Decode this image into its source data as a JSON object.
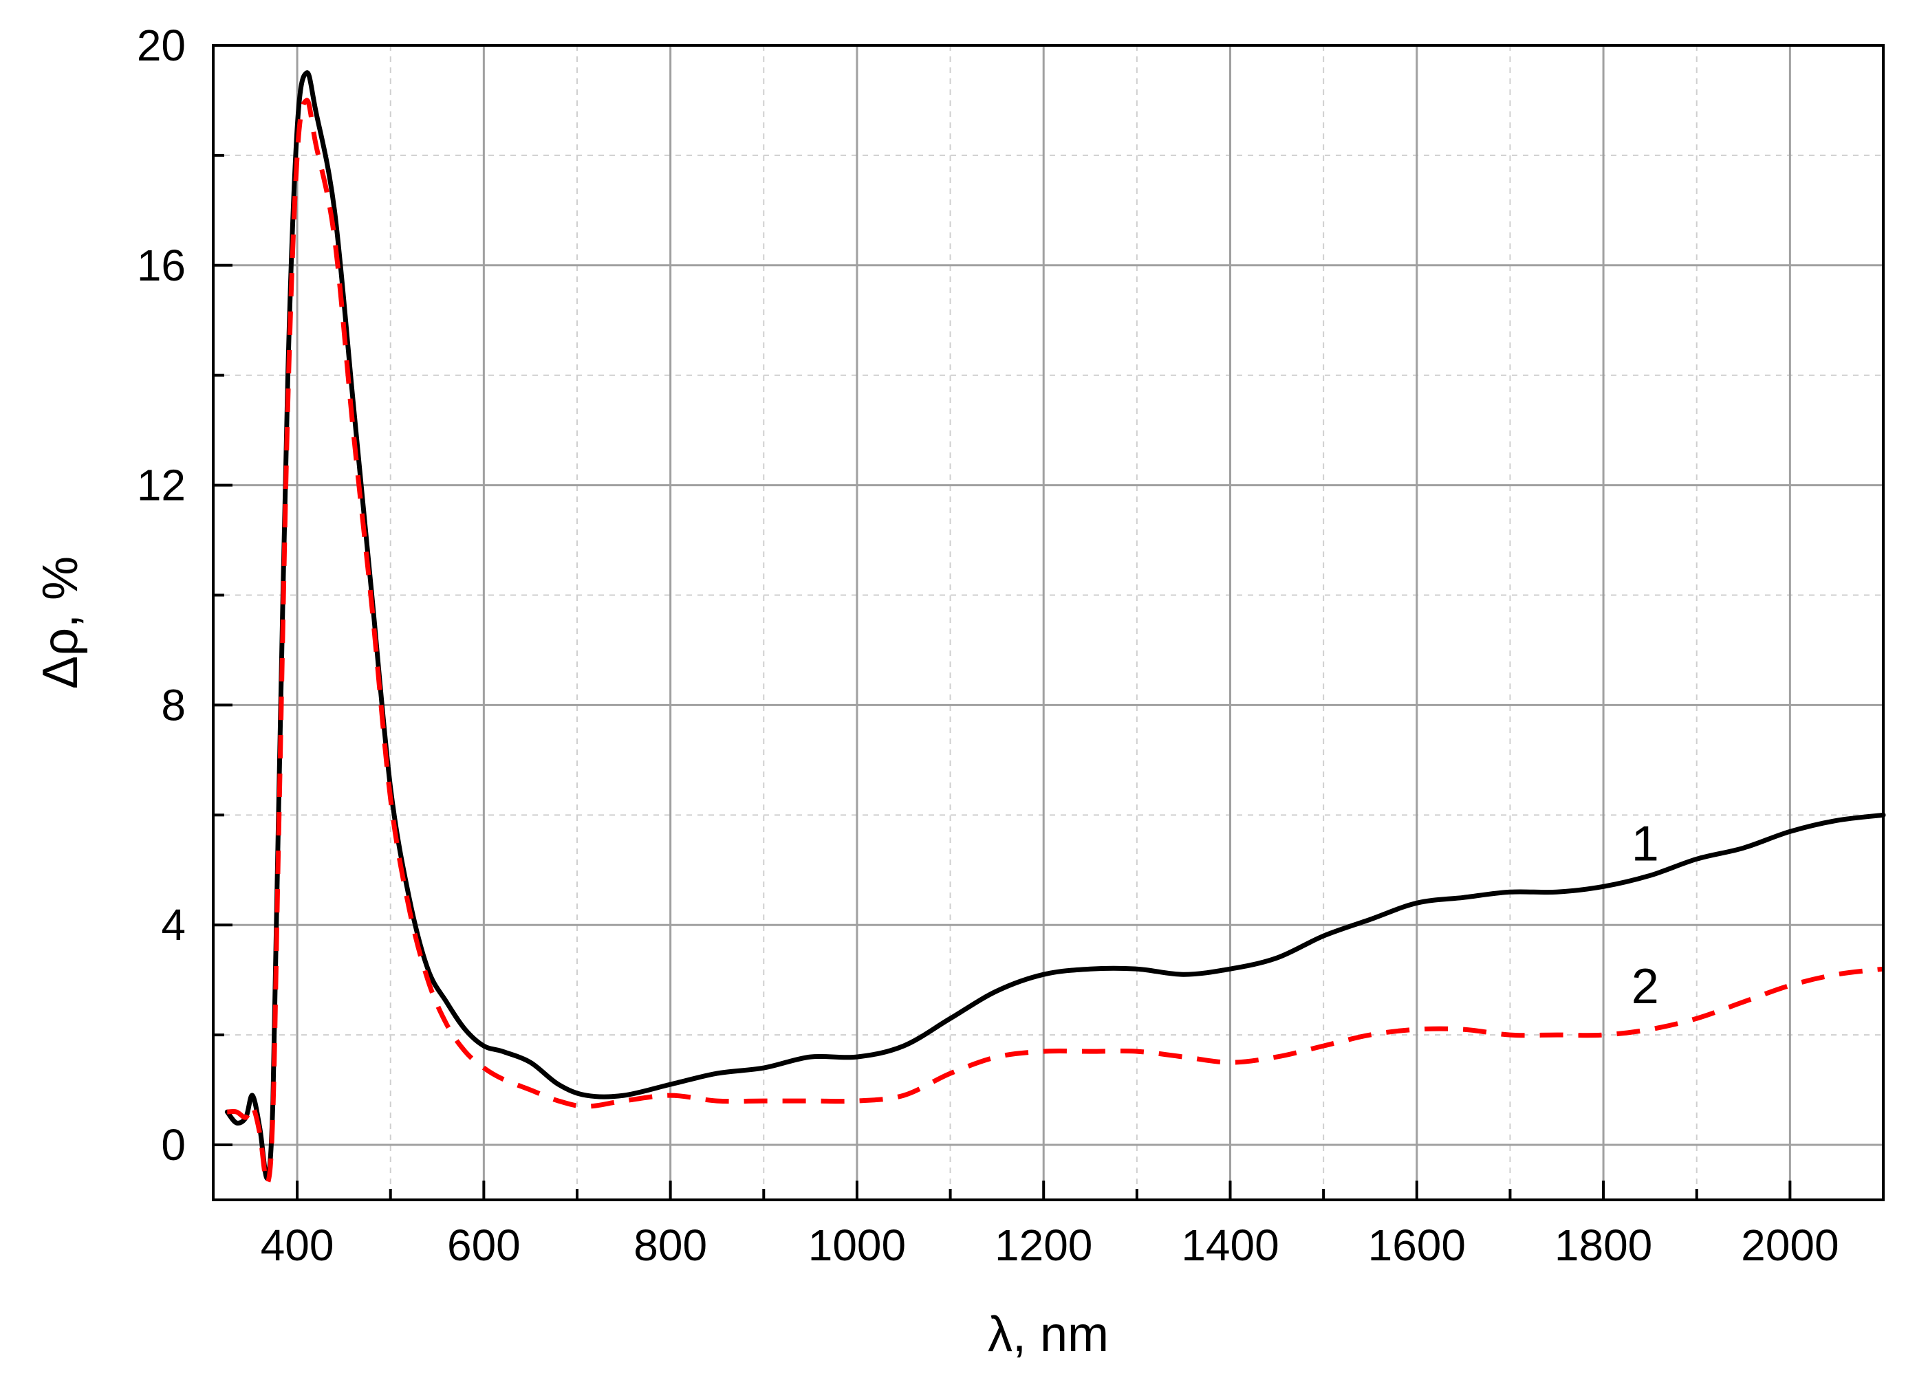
{
  "chart_data": {
    "type": "line",
    "title": "",
    "xlabel": "λ, nm",
    "ylabel": "Δρ, %",
    "xlim": [
      310,
      2100
    ],
    "ylim": [
      -1,
      20
    ],
    "x_ticks": [
      400,
      600,
      800,
      1000,
      1200,
      1400,
      1600,
      1800,
      2000
    ],
    "y_ticks": [
      0,
      4,
      8,
      12,
      16,
      20
    ],
    "x_tick_labels": [
      "400",
      "600",
      "800",
      "1000",
      "1200",
      "1400",
      "1600",
      "1800",
      "2000"
    ],
    "y_tick_labels": [
      "0",
      "4",
      "8",
      "12",
      "16",
      "20"
    ],
    "x_minor_step": 100,
    "y_minor_step": 2,
    "grid": true,
    "legend": "none",
    "series": [
      {
        "label": "1",
        "color": "#000000",
        "dash": "solid",
        "x": [
          325,
          335,
          345,
          352,
          360,
          368,
          374,
          380,
          390,
          400,
          410,
          420,
          440,
          460,
          480,
          500,
          520,
          540,
          560,
          580,
          600,
          620,
          650,
          680,
          710,
          750,
          800,
          850,
          900,
          950,
          1000,
          1050,
          1100,
          1150,
          1200,
          1250,
          1300,
          1350,
          1400,
          1450,
          1500,
          1550,
          1600,
          1650,
          1700,
          1750,
          1800,
          1850,
          1900,
          1950,
          2000,
          2050,
          2100
        ],
        "y": [
          0.6,
          0.4,
          0.5,
          0.9,
          0.3,
          -0.6,
          0.8,
          6,
          14,
          18.5,
          19.5,
          18.8,
          17.0,
          13.5,
          10.0,
          6.5,
          4.5,
          3.2,
          2.6,
          2.1,
          1.8,
          1.7,
          1.5,
          1.1,
          0.9,
          0.9,
          1.1,
          1.3,
          1.4,
          1.6,
          1.6,
          1.8,
          2.3,
          2.8,
          3.1,
          3.2,
          3.2,
          3.1,
          3.2,
          3.4,
          3.8,
          4.1,
          4.4,
          4.5,
          4.6,
          4.6,
          4.7,
          4.9,
          5.2,
          5.4,
          5.7,
          5.9,
          6.0
        ]
      },
      {
        "label": "2",
        "color": "#ff0000",
        "dash": "dashed",
        "x": [
          325,
          335,
          345,
          352,
          360,
          368,
          374,
          380,
          390,
          400,
          410,
          420,
          440,
          460,
          480,
          500,
          520,
          540,
          560,
          580,
          600,
          620,
          650,
          680,
          710,
          750,
          800,
          850,
          900,
          950,
          1000,
          1050,
          1100,
          1150,
          1200,
          1250,
          1300,
          1350,
          1400,
          1450,
          1500,
          1550,
          1600,
          1650,
          1700,
          1750,
          1800,
          1850,
          1900,
          1950,
          2000,
          2050,
          2100
        ],
        "y": [
          0.6,
          0.6,
          0.5,
          0.7,
          0.2,
          -0.7,
          0.6,
          5.5,
          13.5,
          18.0,
          19.0,
          18.2,
          16.5,
          13.0,
          9.8,
          6.3,
          4.3,
          3.0,
          2.2,
          1.7,
          1.4,
          1.2,
          1.0,
          0.8,
          0.7,
          0.8,
          0.9,
          0.8,
          0.8,
          0.8,
          0.8,
          0.9,
          1.3,
          1.6,
          1.7,
          1.7,
          1.7,
          1.6,
          1.5,
          1.6,
          1.8,
          2.0,
          2.1,
          2.1,
          2.0,
          2.0,
          2.0,
          2.1,
          2.3,
          2.6,
          2.9,
          3.1,
          3.2
        ]
      }
    ],
    "annotations": [
      {
        "text": "1",
        "x": 1830,
        "y": 5.5
      },
      {
        "text": "2",
        "x": 1830,
        "y": 2.9
      }
    ]
  }
}
